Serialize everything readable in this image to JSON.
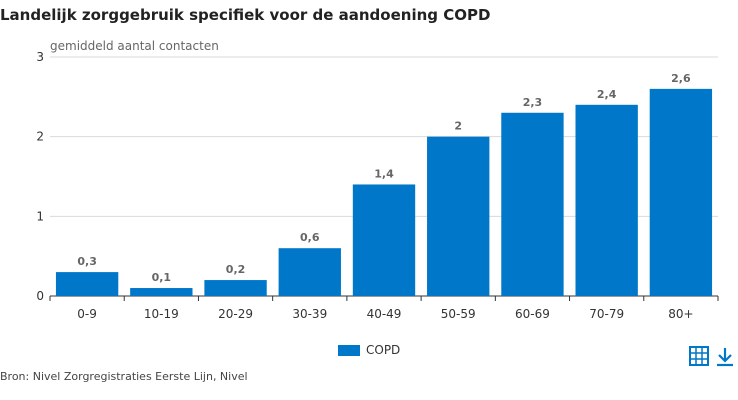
{
  "title": "Landelijk zorggebruik specifiek voor de aandoening COPD",
  "source": "Bron: Nivel Zorgregistraties Eerste Lijn, Nivel",
  "icons": {
    "table": "table-icon",
    "download": "download-icon"
  },
  "colors": {
    "bar": "#0077c8",
    "grid": "#d9d9d9",
    "axis": "#333333",
    "label": "#666666"
  },
  "chart_data": {
    "type": "bar",
    "categories": [
      "0-9",
      "10-19",
      "20-29",
      "30-39",
      "40-49",
      "50-59",
      "60-69",
      "70-79",
      "80+"
    ],
    "series": [
      {
        "name": "COPD",
        "values": [
          0.3,
          0.1,
          0.2,
          0.6,
          1.4,
          2,
          2.3,
          2.4,
          2.6
        ],
        "labels": [
          "0,3",
          "0,1",
          "0,2",
          "0,6",
          "1,4",
          "2",
          "2,3",
          "2,4",
          "2,6"
        ]
      }
    ],
    "ylabel": "gemiddeld aantal contacten",
    "xlabel": "",
    "ylim": [
      0,
      3
    ],
    "yticks": [
      "0",
      "1",
      "2",
      "3"
    ],
    "grid": true,
    "legend_position": "bottom-center"
  }
}
